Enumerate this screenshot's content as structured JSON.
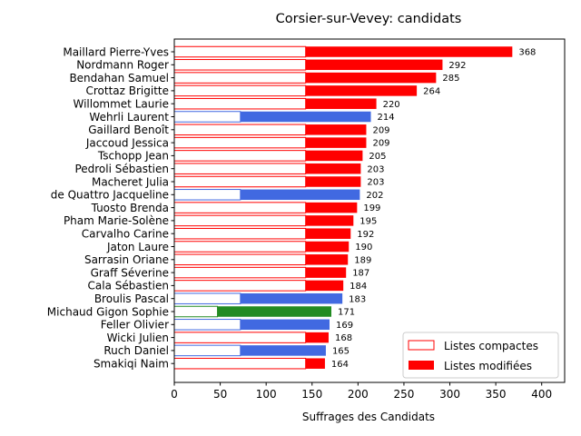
{
  "chart_data": {
    "type": "bar",
    "orientation": "horizontal",
    "stacked": true,
    "title": "Corsier-sur-Vevey: candidats",
    "xlabel": "Suffrages des Candidats",
    "ylabel": "",
    "xlim": [
      0,
      425
    ],
    "xticks": [
      0,
      50,
      100,
      150,
      200,
      250,
      300,
      350,
      400
    ],
    "grid": false,
    "legend_position": "lower-right",
    "legend": [
      {
        "label": "Listes compactes",
        "style": "outline",
        "color": "#ff0000"
      },
      {
        "label": "Listes modifiées",
        "style": "filled",
        "color": "#ff0000"
      }
    ],
    "list_colors": {
      "red": "#ff0000",
      "blue": "#4169e1",
      "green": "#228b22"
    },
    "candidates": [
      {
        "name": "Maillard Pierre-Yves",
        "compact": 143,
        "total": 368,
        "color": "red"
      },
      {
        "name": "Nordmann Roger",
        "compact": 143,
        "total": 292,
        "color": "red"
      },
      {
        "name": "Bendahan Samuel",
        "compact": 143,
        "total": 285,
        "color": "red"
      },
      {
        "name": "Crottaz Brigitte",
        "compact": 143,
        "total": 264,
        "color": "red"
      },
      {
        "name": "Willommet Laurie",
        "compact": 143,
        "total": 220,
        "color": "red"
      },
      {
        "name": "Wehrli Laurent",
        "compact": 72,
        "total": 214,
        "color": "blue"
      },
      {
        "name": "Gaillard Benoît",
        "compact": 143,
        "total": 209,
        "color": "red"
      },
      {
        "name": "Jaccoud Jessica",
        "compact": 143,
        "total": 209,
        "color": "red"
      },
      {
        "name": "Tschopp Jean",
        "compact": 143,
        "total": 205,
        "color": "red"
      },
      {
        "name": "Pedroli Sébastien",
        "compact": 143,
        "total": 203,
        "color": "red"
      },
      {
        "name": "Macheret Julia",
        "compact": 143,
        "total": 203,
        "color": "red"
      },
      {
        "name": "de Quattro Jacqueline",
        "compact": 72,
        "total": 202,
        "color": "blue"
      },
      {
        "name": "Tuosto Brenda",
        "compact": 143,
        "total": 199,
        "color": "red"
      },
      {
        "name": "Pham Marie-Solène",
        "compact": 143,
        "total": 195,
        "color": "red"
      },
      {
        "name": "Carvalho Carine",
        "compact": 143,
        "total": 192,
        "color": "red"
      },
      {
        "name": "Jaton Laure",
        "compact": 143,
        "total": 190,
        "color": "red"
      },
      {
        "name": "Sarrasin Oriane",
        "compact": 143,
        "total": 189,
        "color": "red"
      },
      {
        "name": "Graff Séverine",
        "compact": 143,
        "total": 187,
        "color": "red"
      },
      {
        "name": "Cala Sébastien",
        "compact": 143,
        "total": 184,
        "color": "red"
      },
      {
        "name": "Broulis Pascal",
        "compact": 72,
        "total": 183,
        "color": "blue"
      },
      {
        "name": "Michaud Gigon Sophie",
        "compact": 47,
        "total": 171,
        "color": "green"
      },
      {
        "name": "Feller Olivier",
        "compact": 72,
        "total": 169,
        "color": "blue"
      },
      {
        "name": "Wicki Julien",
        "compact": 143,
        "total": 168,
        "color": "red"
      },
      {
        "name": "Ruch Daniel",
        "compact": 72,
        "total": 165,
        "color": "blue"
      },
      {
        "name": "Smakiqi Naim",
        "compact": 143,
        "total": 164,
        "color": "red"
      }
    ]
  }
}
